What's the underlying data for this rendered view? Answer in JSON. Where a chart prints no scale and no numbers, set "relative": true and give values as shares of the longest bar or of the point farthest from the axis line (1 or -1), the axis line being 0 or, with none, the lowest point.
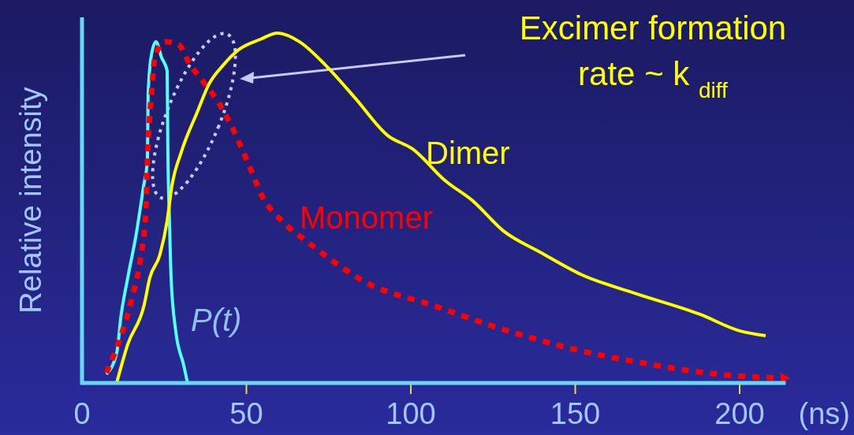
{
  "chart_data": {
    "type": "line",
    "relative": true,
    "ylabel": "Relative intensity",
    "xlabel": "(ns)",
    "annotations": [
      "Excimer formation",
      "rate ~ k $_{diff}$"
    ],
    "xlim": [
      0,
      214
    ],
    "xticks": [
      0,
      50,
      100,
      150,
      200
    ],
    "legend": false,
    "marker": "none",
    "grid": false,
    "series": [
      {
        "name": "P(t)",
        "color": "#55ffff",
        "line_style": "solid",
        "x": [
          7.4,
          10.6,
          11.8,
          13.9,
          16.5,
          18.7,
          19.9,
          20.1,
          21.1,
          22.5,
          24.2,
          25.9,
          26.1,
          26.6,
          27.1,
          28.5,
          30.9,
          32.1
        ],
        "values": [
          0.025,
          0.088,
          0.187,
          0.3,
          0.426,
          0.561,
          0.637,
          0.824,
          0.937,
          0.975,
          0.93,
          0.892,
          0.673,
          0.464,
          0.3,
          0.149,
          0.052,
          0
        ]
      },
      {
        "name": "Monomer",
        "color": "#ff0000",
        "line_style": "dotted",
        "x": [
          7.4,
          11.8,
          15.1,
          17.7,
          19.4,
          19.9,
          21.1,
          22.3,
          25.4,
          29.5,
          32.6,
          36.7,
          41.5,
          46.3,
          51.1,
          54.9,
          60.7,
          68.6,
          76.5,
          84.9,
          107.9,
          126.4,
          149.4,
          172.4,
          195.4,
          212.9
        ],
        "values": [
          0.029,
          0.133,
          0.239,
          0.351,
          0.486,
          0.637,
          0.824,
          0.937,
          0.975,
          0.966,
          0.914,
          0.863,
          0.802,
          0.718,
          0.615,
          0.532,
          0.464,
          0.403,
          0.347,
          0.295,
          0.218,
          0.158,
          0.097,
          0.054,
          0.023,
          0.014
        ]
      },
      {
        "name": "Dimer",
        "color": "#ffff00",
        "line_style": "solid",
        "x": [
          10.6,
          13.9,
          18.9,
          20.6,
          23.7,
          25.9,
          27.3,
          30.2,
          35,
          38.6,
          42.9,
          47.7,
          54.2,
          59.5,
          66.2,
          74.1,
          83,
          93,
          100.5,
          110.6,
          118.9,
          128.1,
          139.3,
          152,
          167.9,
          188,
          200,
          207.9
        ],
        "values": [
          0.002,
          0.11,
          0.223,
          0.3,
          0.367,
          0.464,
          0.561,
          0.66,
          0.773,
          0.854,
          0.908,
          0.953,
          0.982,
          1,
          0.975,
          0.908,
          0.815,
          0.707,
          0.669,
          0.577,
          0.52,
          0.435,
          0.374,
          0.309,
          0.257,
          0.196,
          0.149,
          0.135
        ]
      }
    ]
  }
}
